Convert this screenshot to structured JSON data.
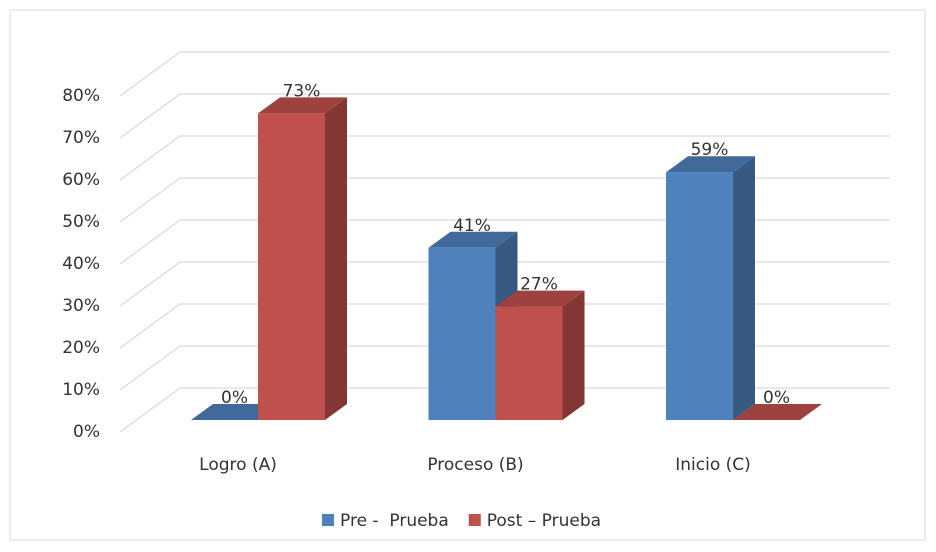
{
  "chart_data": {
    "type": "bar3d",
    "categories": [
      "Logro (A)",
      "Proceso (B)",
      "Inicio (C)"
    ],
    "series": [
      {
        "name": "Pre -  Prueba",
        "color": "#4f81bd",
        "values": [
          0,
          41,
          59
        ],
        "value_labels": [
          "0%",
          "41%",
          "59%"
        ]
      },
      {
        "name": "Post – Prueba",
        "color": "#c0504d",
        "values": [
          73,
          27,
          0
        ],
        "value_labels": [
          "73%",
          "27%",
          "0%"
        ]
      }
    ],
    "ylim": [
      0,
      80
    ],
    "yticks": [
      {
        "value": 0,
        "label": "0%"
      },
      {
        "value": 10,
        "label": "10%"
      },
      {
        "value": 20,
        "label": "20%"
      },
      {
        "value": 30,
        "label": "30%"
      },
      {
        "value": 40,
        "label": "40%"
      },
      {
        "value": 50,
        "label": "50%"
      },
      {
        "value": 60,
        "label": "60%"
      },
      {
        "value": 70,
        "label": "70%"
      },
      {
        "value": 80,
        "label": "80%"
      }
    ],
    "grid": true,
    "legend": "bottom"
  }
}
